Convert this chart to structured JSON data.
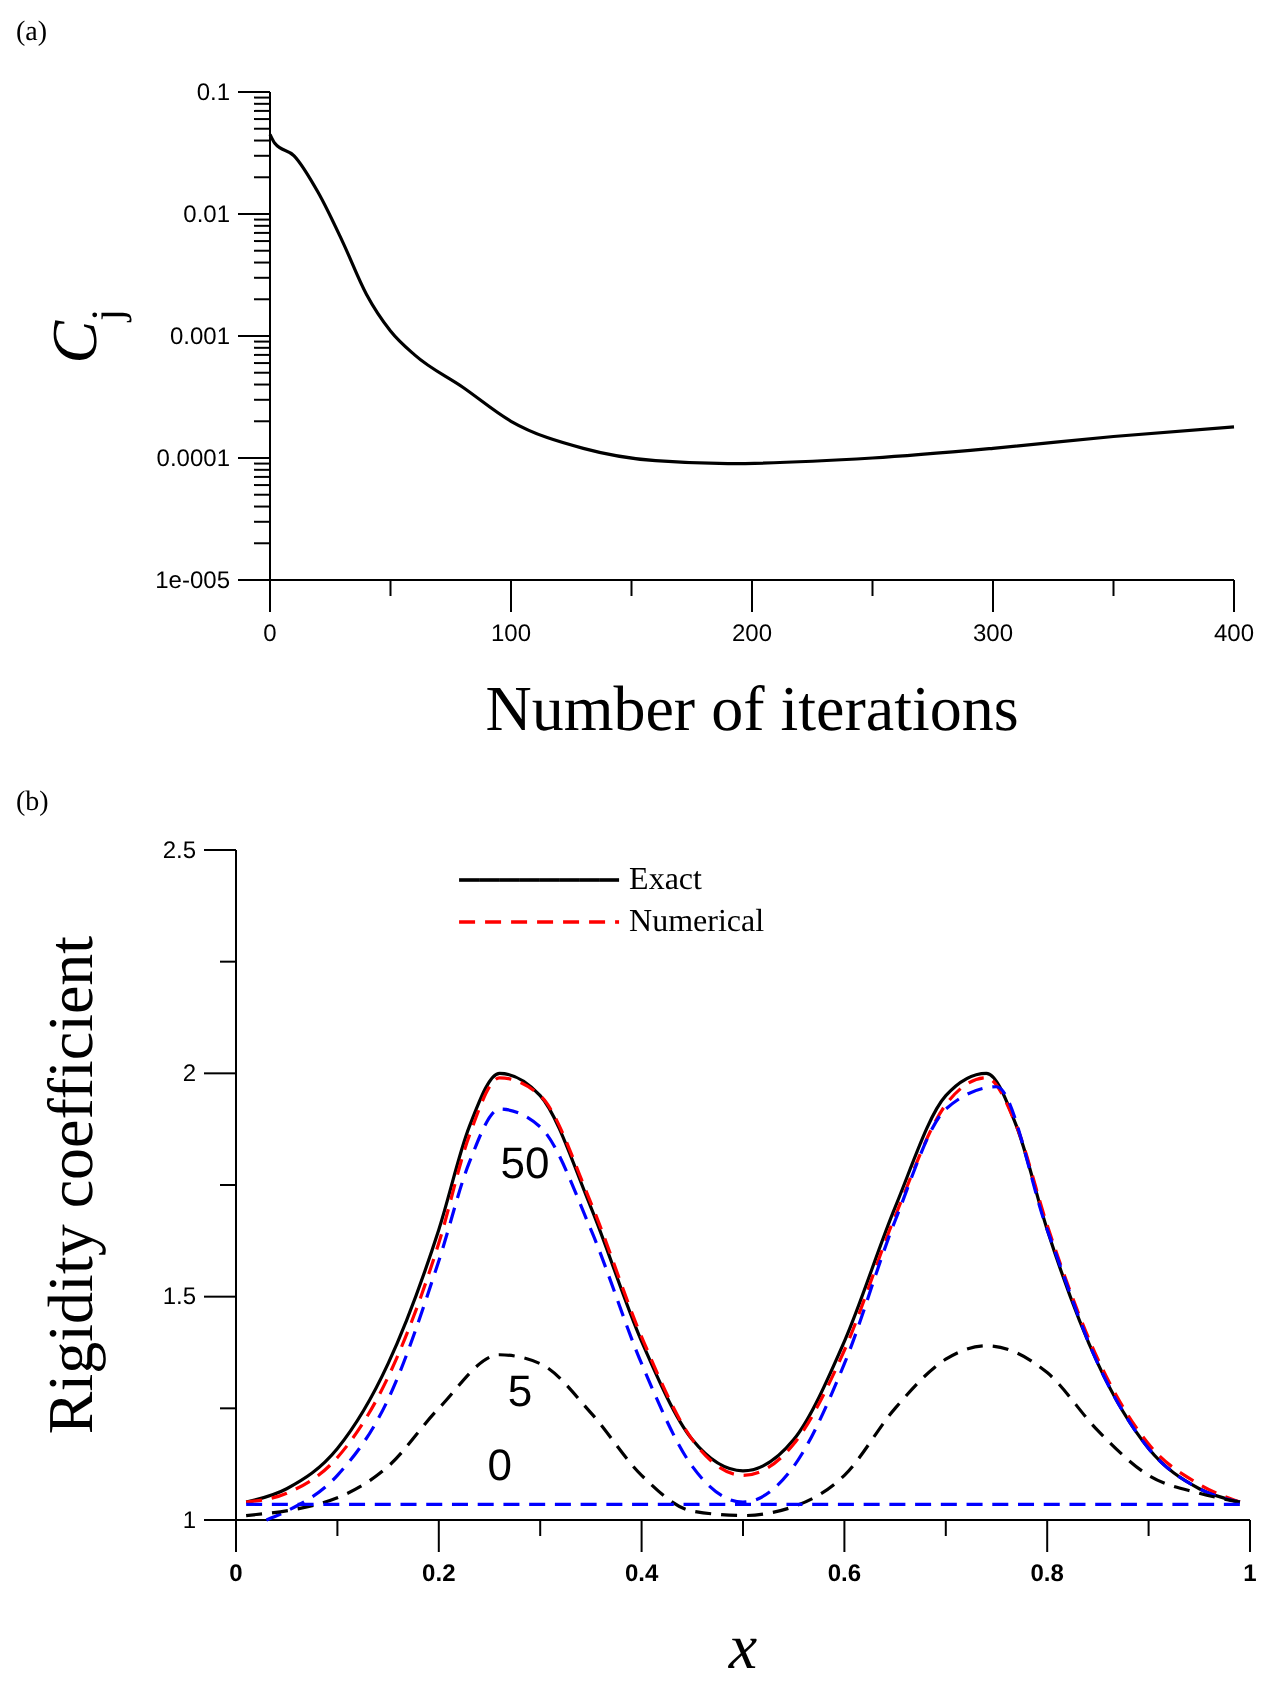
{
  "chart_data": [
    {
      "type": "line",
      "title": "(a)",
      "xlabel": "Number of iterations",
      "ylabel": "C$_{j}$",
      "log": "y",
      "legend": false,
      "grid": false,
      "xlim": [
        0,
        400
      ],
      "xticks": [
        0,
        {
          "value": 50,
          "label": null
        },
        100,
        {
          "value": 150,
          "label": null
        },
        200,
        {
          "value": 250,
          "label": null
        },
        300,
        {
          "value": 350,
          "label": null
        },
        400
      ],
      "ylim": [
        1e-05,
        0.1
      ],
      "yticks": [
        {
          "value": 1e-05,
          "label": "1e-005"
        },
        {
          "value": 2e-05,
          "label": null
        },
        {
          "value": 3e-05,
          "label": null
        },
        {
          "value": 4e-05,
          "label": null
        },
        {
          "value": 5e-05,
          "label": null
        },
        {
          "value": 6e-05,
          "label": null
        },
        {
          "value": 7e-05,
          "label": null
        },
        {
          "value": 8e-05,
          "label": null
        },
        {
          "value": 9e-05,
          "label": null
        },
        0.0001,
        {
          "value": 0.0002,
          "label": null
        },
        {
          "value": 0.0003,
          "label": null
        },
        {
          "value": 0.0004,
          "label": null
        },
        {
          "value": 0.0005,
          "label": null
        },
        {
          "value": 0.0006,
          "label": null
        },
        {
          "value": 0.0007,
          "label": null
        },
        {
          "value": 0.0008,
          "label": null
        },
        {
          "value": 0.0009,
          "label": null
        },
        0.001,
        {
          "value": 0.002,
          "label": null
        },
        {
          "value": 0.003,
          "label": null
        },
        {
          "value": 0.004,
          "label": null
        },
        {
          "value": 0.005,
          "label": null
        },
        {
          "value": 0.006,
          "label": null
        },
        {
          "value": 0.007,
          "label": null
        },
        {
          "value": 0.008,
          "label": null
        },
        {
          "value": 0.009,
          "label": null
        },
        0.01,
        {
          "value": 0.02,
          "label": null
        },
        {
          "value": 0.03,
          "label": null
        },
        {
          "value": 0.04,
          "label": null
        },
        {
          "value": 0.05,
          "label": null
        },
        {
          "value": 0.06,
          "label": null
        },
        {
          "value": 0.07,
          "label": null
        },
        {
          "value": 0.08,
          "label": null
        },
        {
          "value": 0.09,
          "label": null
        },
        0.1
      ],
      "series": [
        {
          "color": "#000000",
          "line_style": "solid",
          "x": [
            0,
            2,
            10,
            20,
            30,
            40,
            50,
            60,
            80,
            100,
            130,
            160,
            190,
            250,
            300,
            350,
            400
          ],
          "values": [
            0.045,
            0.038,
            0.03,
            0.015,
            0.006,
            0.0022,
            0.0011,
            0.0007,
            0.00038,
            0.0002,
            0.00012,
            9.5e-05,
            9e-05,
            0.0001,
            0.00012,
            0.00015,
            0.00018
          ]
        }
      ]
    },
    {
      "type": "line",
      "title": "(b)",
      "xlabel": "x",
      "ylabel": "Rigidity coefficient",
      "legend": "top",
      "grid": false,
      "xlim": [
        0,
        1
      ],
      "xticks": [
        0,
        {
          "value": 0.1,
          "label": null
        },
        0.2,
        {
          "value": 0.3,
          "label": null
        },
        0.4,
        {
          "value": 0.5,
          "label": null
        },
        0.6,
        {
          "value": 0.7,
          "label": null
        },
        0.8,
        {
          "value": 0.9,
          "label": null
        },
        1
      ],
      "ylim": [
        1,
        2.5
      ],
      "yticks": [
        1,
        {
          "value": 1.25,
          "label": null
        },
        1.5,
        {
          "value": 1.75,
          "label": null
        },
        2,
        {
          "value": 2.25,
          "label": null
        },
        2.5
      ],
      "annotations": [
        "50",
        "5",
        "0"
      ],
      "series": [
        {
          "name": "Exact",
          "color": "#000000",
          "line_style": "solid",
          "x": [
            0.01,
            0.05,
            0.1,
            0.15,
            0.2,
            0.23,
            0.26,
            0.3,
            0.35,
            0.4,
            0.45,
            0.5,
            0.55,
            0.6,
            0.65,
            0.7,
            0.74,
            0.77,
            0.8,
            0.85,
            0.9,
            0.95,
            0.99
          ],
          "values": [
            1.04,
            1.07,
            1.16,
            1.35,
            1.65,
            1.88,
            2.0,
            1.95,
            1.7,
            1.4,
            1.18,
            1.11,
            1.18,
            1.4,
            1.7,
            1.95,
            2.0,
            1.88,
            1.65,
            1.35,
            1.16,
            1.07,
            1.04
          ]
        },
        {
          "name": "Numerical",
          "color": "#ff0000",
          "line_style": "dashed",
          "x": [
            0.01,
            0.05,
            0.1,
            0.15,
            0.2,
            0.23,
            0.26,
            0.3,
            0.35,
            0.4,
            0.45,
            0.5,
            0.55,
            0.6,
            0.65,
            0.7,
            0.74,
            0.77,
            0.8,
            0.85,
            0.9,
            0.95,
            0.99
          ],
          "values": [
            1.04,
            1.06,
            1.14,
            1.32,
            1.62,
            1.86,
            1.99,
            1.95,
            1.71,
            1.41,
            1.18,
            1.1,
            1.17,
            1.38,
            1.68,
            1.93,
            1.99,
            1.88,
            1.66,
            1.36,
            1.17,
            1.08,
            1.04
          ]
        },
        {
          "color": "#0000ff",
          "line_style": "dashed",
          "x": [
            0.03,
            0.05,
            0.1,
            0.15,
            0.2,
            0.23,
            0.26,
            0.3,
            0.35,
            0.4,
            0.45,
            0.5,
            0.55,
            0.6,
            0.65,
            0.7,
            0.75,
            0.8,
            0.85,
            0.9,
            0.95,
            0.99
          ],
          "values": [
            1.0,
            1.02,
            1.1,
            1.27,
            1.58,
            1.8,
            1.92,
            1.88,
            1.65,
            1.35,
            1.12,
            1.04,
            1.12,
            1.35,
            1.67,
            1.92,
            1.97,
            1.65,
            1.35,
            1.16,
            1.07,
            1.04
          ]
        },
        {
          "color": "#000000",
          "line_style": "dashed",
          "x": [
            0.01,
            0.1,
            0.15,
            0.2,
            0.26,
            0.3,
            0.35,
            0.4,
            0.45,
            0.5,
            0.55,
            0.6,
            0.65,
            0.7,
            0.74,
            0.8,
            0.85,
            0.9,
            0.95,
            0.99
          ],
          "values": [
            1.01,
            1.05,
            1.12,
            1.25,
            1.37,
            1.35,
            1.24,
            1.1,
            1.02,
            1.01,
            1.03,
            1.1,
            1.25,
            1.36,
            1.39,
            1.33,
            1.2,
            1.1,
            1.06,
            1.04
          ]
        },
        {
          "color": "#0000ff",
          "line_style": "dashed",
          "x": [
            0.01,
            0.99
          ],
          "values": [
            1.035,
            1.035
          ]
        }
      ]
    }
  ]
}
